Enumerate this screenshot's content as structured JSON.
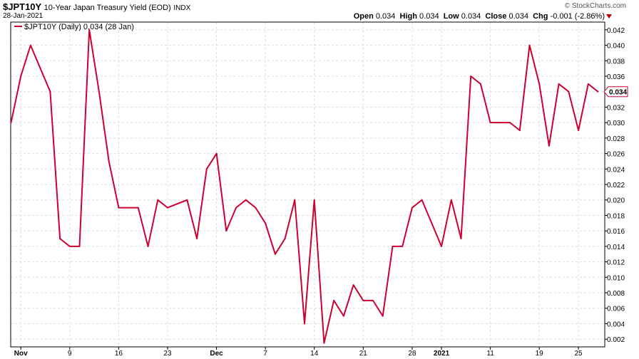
{
  "header": {
    "symbol": "$JPT10Y",
    "description": "10-Year Japan Treasury Yield (EOD)",
    "exchange": "INDX",
    "date": "28-Jan-2021",
    "watermark": "© StockCharts.com",
    "open_label": "Open",
    "open": "0.034",
    "high_label": "High",
    "high": "0.034",
    "low_label": "Low",
    "low": "0.034",
    "close_label": "Close",
    "close": "0.034",
    "chg_label": "Chg",
    "chg": "-0.001 (-2.86%)"
  },
  "colors": {
    "line": "#cc0033",
    "grid": "#dddddd",
    "axis": "#000000",
    "down": "#c00000"
  },
  "chart_data": {
    "type": "line",
    "legend": "$JPT10Y (Daily) 0.034 (28 Jan)",
    "last_value_label": "0.034",
    "ylim": [
      0.001,
      0.043
    ],
    "y_ticks": [
      "0.002",
      "0.004",
      "0.006",
      "0.008",
      "0.010",
      "0.012",
      "0.014",
      "0.016",
      "0.018",
      "0.020",
      "0.022",
      "0.024",
      "0.026",
      "0.028",
      "0.030",
      "0.032",
      "0.034",
      "0.036",
      "0.038",
      "0.040",
      "0.042"
    ],
    "x_tick_labels": [
      {
        "label": "Nov",
        "index": 1,
        "bold": true
      },
      {
        "label": "9",
        "index": 6,
        "bold": false
      },
      {
        "label": "16",
        "index": 11,
        "bold": false
      },
      {
        "label": "23",
        "index": 16,
        "bold": false
      },
      {
        "label": "Dec",
        "index": 21,
        "bold": true
      },
      {
        "label": "7",
        "index": 26,
        "bold": false
      },
      {
        "label": "14",
        "index": 31,
        "bold": false
      },
      {
        "label": "21",
        "index": 36,
        "bold": false
      },
      {
        "label": "28",
        "index": 41,
        "bold": false
      },
      {
        "label": "2021",
        "index": 44,
        "bold": true
      },
      {
        "label": "11",
        "index": 49,
        "bold": false
      },
      {
        "label": "19",
        "index": 54,
        "bold": false
      },
      {
        "label": "25",
        "index": 58,
        "bold": false
      }
    ],
    "series": [
      {
        "values": [
          0.03,
          0.036,
          0.04,
          0.037,
          0.034,
          0.015,
          0.014,
          0.014,
          0.042,
          0.034,
          0.025,
          0.019,
          0.019,
          0.019,
          0.014,
          0.02,
          0.019,
          0.0195,
          0.02,
          0.015,
          0.024,
          0.026,
          0.016,
          0.019,
          0.02,
          0.019,
          0.017,
          0.013,
          0.015,
          0.02,
          0.004,
          0.02,
          0.0015,
          0.007,
          0.005,
          0.009,
          0.007,
          0.007,
          0.005,
          0.014,
          0.014,
          0.019,
          0.02,
          0.017,
          0.014,
          0.02,
          0.015,
          0.036,
          0.035,
          0.03,
          0.03,
          0.03,
          0.029,
          0.04,
          0.035,
          0.027,
          0.035,
          0.034,
          0.029,
          0.035,
          0.034
        ]
      }
    ]
  }
}
